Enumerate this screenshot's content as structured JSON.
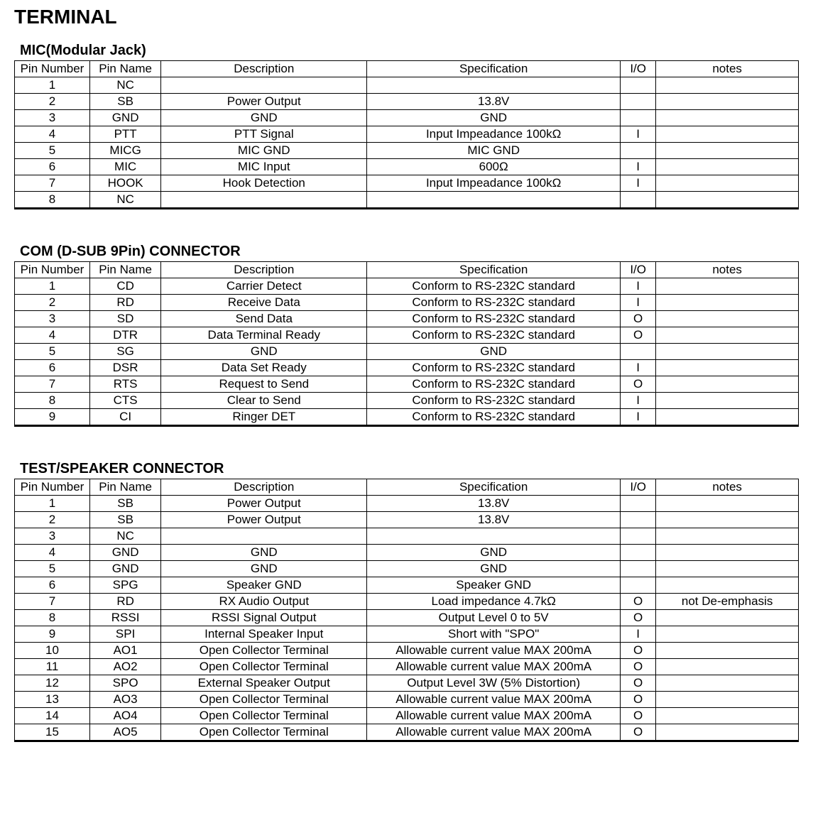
{
  "page_title": "TERMINAL",
  "tables": [
    {
      "title": "MIC(Modular Jack)",
      "columns": [
        "Pin Number",
        "Pin Name",
        "Description",
        "Specification",
        "I/O",
        "notes"
      ],
      "rows": [
        [
          "1",
          "NC",
          "",
          "",
          "",
          ""
        ],
        [
          "2",
          "SB",
          "Power Output",
          "13.8V",
          "",
          ""
        ],
        [
          "3",
          "GND",
          "GND",
          "GND",
          "",
          ""
        ],
        [
          "4",
          "PTT",
          "PTT Signal",
          "Input Impeadance 100kΩ",
          "I",
          ""
        ],
        [
          "5",
          "MICG",
          "MIC GND",
          "MIC GND",
          "",
          ""
        ],
        [
          "6",
          "MIC",
          "MIC Input",
          "600Ω",
          "I",
          ""
        ],
        [
          "7",
          "HOOK",
          "Hook Detection",
          "Input Impeadance 100kΩ",
          "I",
          ""
        ],
        [
          "8",
          "NC",
          "",
          "",
          "",
          ""
        ]
      ]
    },
    {
      "title": "COM (D-SUB 9Pin) CONNECTOR",
      "columns": [
        "Pin Number",
        "Pin Name",
        "Description",
        "Specification",
        "I/O",
        "notes"
      ],
      "rows": [
        [
          "1",
          "CD",
          "Carrier Detect",
          "Conform to RS-232C standard",
          "I",
          ""
        ],
        [
          "2",
          "RD",
          "Receive Data",
          "Conform to RS-232C standard",
          "I",
          ""
        ],
        [
          "3",
          "SD",
          "Send Data",
          "Conform to RS-232C standard",
          "O",
          ""
        ],
        [
          "4",
          "DTR",
          "Data Terminal Ready",
          "Conform to RS-232C standard",
          "O",
          ""
        ],
        [
          "5",
          "SG",
          "GND",
          "GND",
          "",
          ""
        ],
        [
          "6",
          "DSR",
          "Data Set Ready",
          "Conform to RS-232C standard",
          "I",
          ""
        ],
        [
          "7",
          "RTS",
          "Request to Send",
          "Conform to RS-232C standard",
          "O",
          ""
        ],
        [
          "8",
          "CTS",
          "Clear to Send",
          "Conform to RS-232C standard",
          "I",
          ""
        ],
        [
          "9",
          "CI",
          "Ringer DET",
          "Conform to RS-232C standard",
          "I",
          ""
        ]
      ]
    },
    {
      "title": "TEST/SPEAKER CONNECTOR",
      "columns": [
        "Pin Number",
        "Pin Name",
        "Description",
        "Specification",
        "I/O",
        "notes"
      ],
      "rows": [
        [
          "1",
          "SB",
          "Power Output",
          "13.8V",
          "",
          ""
        ],
        [
          "2",
          "SB",
          "Power Output",
          "13.8V",
          "",
          ""
        ],
        [
          "3",
          "NC",
          "",
          "",
          "",
          ""
        ],
        [
          "4",
          "GND",
          "GND",
          "GND",
          "",
          ""
        ],
        [
          "5",
          "GND",
          "GND",
          "GND",
          "",
          ""
        ],
        [
          "6",
          "SPG",
          "Speaker GND",
          "Speaker GND",
          "",
          ""
        ],
        [
          "7",
          "RD",
          "RX Audio Output",
          "Load impedance 4.7kΩ",
          "O",
          "not De-emphasis"
        ],
        [
          "8",
          "RSSI",
          "RSSI Signal Output",
          "Output Level 0 to 5V",
          "O",
          ""
        ],
        [
          "9",
          "SPI",
          "Internal Speaker Input",
          "Short with \"SPO\"",
          "I",
          ""
        ],
        [
          "10",
          "AO1",
          "Open Collector Terminal",
          "Allowable current value  MAX 200mA",
          "O",
          ""
        ],
        [
          "11",
          "AO2",
          "Open Collector Terminal",
          "Allowable current value  MAX 200mA",
          "O",
          ""
        ],
        [
          "12",
          "SPO",
          "External Speaker Output",
          "Output Level 3W (5% Distortion)",
          "O",
          ""
        ],
        [
          "13",
          "AO3",
          "Open Collector Terminal",
          "Allowable current value  MAX 200mA",
          "O",
          ""
        ],
        [
          "14",
          "AO4",
          "Open Collector Terminal",
          "Allowable current value  MAX 200mA",
          "O",
          ""
        ],
        [
          "15",
          "AO5",
          "Open Collector Terminal",
          "Allowable current value  MAX 200mA",
          "O",
          ""
        ]
      ]
    }
  ]
}
